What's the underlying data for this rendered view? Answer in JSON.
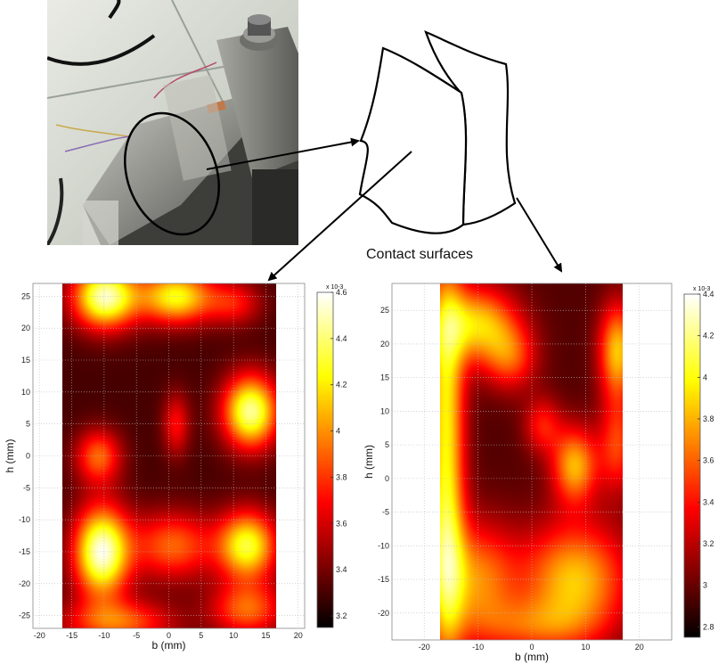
{
  "caption": "Contact surfaces",
  "photo": {
    "description_icon": "specimen-photo"
  },
  "chart_data": [
    {
      "type": "heatmap",
      "xlabel": "b (mm)",
      "ylabel": "h (mm)",
      "xlim": [
        -21,
        21
      ],
      "ylim": [
        27,
        -27
      ],
      "xticks": [
        -20,
        -15,
        -10,
        -5,
        0,
        5,
        10,
        15,
        20
      ],
      "yticks": [
        -25,
        -20,
        -15,
        -10,
        -5,
        0,
        5,
        10,
        15,
        20,
        25
      ],
      "data_xrange": [
        -16.5,
        16.5
      ],
      "colorbar": {
        "min": 3.15,
        "max": 4.6,
        "ticks": [
          3.2,
          3.4,
          3.6,
          3.8,
          4,
          4.2,
          4.4,
          4.6
        ],
        "exponent": "x 10-3",
        "colormap": "hot"
      },
      "background": 3.3,
      "hotspots": [
        {
          "x": -10.5,
          "y": -15,
          "sx": 3.0,
          "sy": 5.0,
          "a": 1.25
        },
        {
          "x": 12,
          "y": -14,
          "sx": 3.2,
          "sy": 3.8,
          "a": 1.0
        },
        {
          "x": 0.5,
          "y": -14,
          "sx": 4.5,
          "sy": 3.8,
          "a": 0.6
        },
        {
          "x": -8,
          "y": -26,
          "sx": 6.0,
          "sy": 2.5,
          "a": 0.6
        },
        {
          "x": 12,
          "y": -24,
          "sx": 4.0,
          "sy": 3.0,
          "a": 0.6
        },
        {
          "x": -11,
          "y": 0,
          "sx": 2.5,
          "sy": 3.0,
          "a": 0.6
        },
        {
          "x": 12.5,
          "y": 7,
          "sx": 3.0,
          "sy": 4.0,
          "a": 1.15
        },
        {
          "x": -10,
          "y": 25,
          "sx": 3.5,
          "sy": 3.5,
          "a": 1.2
        },
        {
          "x": 1,
          "y": 25,
          "sx": 4.0,
          "sy": 3.0,
          "a": 0.95
        },
        {
          "x": 1,
          "y": 5,
          "sx": 1.5,
          "sy": 3.5,
          "a": 0.4
        },
        {
          "x": 10,
          "y": 24,
          "sx": 3.0,
          "sy": 2.5,
          "a": 0.4
        }
      ]
    },
    {
      "type": "heatmap",
      "xlabel": "b (mm)",
      "ylabel": "h (mm)",
      "xlim": [
        -26,
        26
      ],
      "ylim": [
        29,
        -24
      ],
      "xticks": [
        -20,
        -10,
        0,
        10,
        20
      ],
      "yticks": [
        25,
        20,
        15,
        10,
        5,
        0,
        -5,
        -10,
        -15,
        -20
      ],
      "data_xrange": [
        -17,
        17
      ],
      "colorbar": {
        "min": 2.75,
        "max": 4.4,
        "ticks": [
          2.8,
          3,
          3.2,
          3.4,
          3.6,
          3.8,
          4,
          4.2,
          4.4
        ],
        "exponent": "x 10-3",
        "colormap": "hot"
      },
      "background": 2.95,
      "hotspots": [
        {
          "x": -16,
          "y": 15,
          "sx": 2.5,
          "sy": 14,
          "a": 0.9
        },
        {
          "x": -16,
          "y": -12,
          "sx": 2.5,
          "sy": 12,
          "a": 0.9
        },
        {
          "x": -10,
          "y": 23,
          "sx": 5.0,
          "sy": 4.0,
          "a": 0.9
        },
        {
          "x": -4,
          "y": 18,
          "sx": 3.5,
          "sy": 3.5,
          "a": 0.55
        },
        {
          "x": 16,
          "y": 19,
          "sx": 2.5,
          "sy": 5.0,
          "a": 0.9
        },
        {
          "x": 16,
          "y": 5,
          "sx": 2.5,
          "sy": 5.0,
          "a": 0.55
        },
        {
          "x": 8,
          "y": 2,
          "sx": 3.0,
          "sy": 4.0,
          "a": 0.85
        },
        {
          "x": 8,
          "y": -15,
          "sx": 7.0,
          "sy": 6.0,
          "a": 0.9
        },
        {
          "x": -10,
          "y": -15,
          "sx": 5.0,
          "sy": 6.0,
          "a": 0.7
        },
        {
          "x": 0,
          "y": -22,
          "sx": 8.0,
          "sy": 3.0,
          "a": 0.45
        },
        {
          "x": 2,
          "y": 8,
          "sx": 2.5,
          "sy": 3.0,
          "a": 0.45
        }
      ]
    }
  ]
}
